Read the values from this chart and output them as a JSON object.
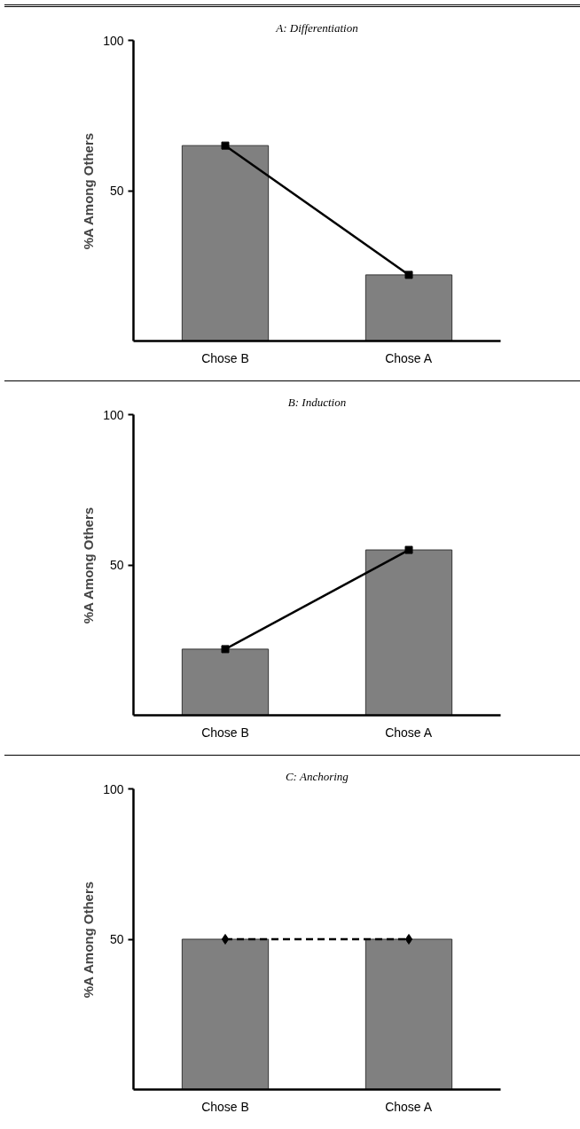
{
  "chart_data": [
    {
      "type": "bar",
      "title": "A: Differentiation",
      "ylabel": "%A Among Others",
      "categories": [
        "Chose B",
        "Chose A"
      ],
      "ylim": [
        0,
        100
      ],
      "yticks": [
        50,
        100
      ],
      "grid": false,
      "series": [
        {
          "color": "#808080",
          "values": [
            65,
            22
          ]
        },
        {
          "type": "line",
          "color": "#000000",
          "values": [
            65,
            22
          ],
          "marker": "square",
          "line_style": "solid"
        }
      ]
    },
    {
      "type": "bar",
      "title": "B: Induction",
      "ylabel": "%A Among Others",
      "categories": [
        "Chose B",
        "Chose A"
      ],
      "ylim": [
        0,
        100
      ],
      "yticks": [
        50,
        100
      ],
      "grid": false,
      "series": [
        {
          "color": "#808080",
          "values": [
            22,
            55
          ]
        },
        {
          "type": "line",
          "color": "#000000",
          "values": [
            22,
            55
          ],
          "marker": "square",
          "line_style": "solid"
        }
      ]
    },
    {
      "type": "bar",
      "title": "C: Anchoring",
      "ylabel": "%A Among Others",
      "categories": [
        "Chose B",
        "Chose A"
      ],
      "ylim": [
        0,
        100
      ],
      "yticks": [
        50,
        100
      ],
      "grid": false,
      "series": [
        {
          "color": "#808080",
          "values": [
            50,
            50
          ]
        },
        {
          "type": "line",
          "color": "#000000",
          "values": [
            50,
            50
          ],
          "marker": "diamond",
          "line_style": "dashed"
        }
      ]
    }
  ]
}
